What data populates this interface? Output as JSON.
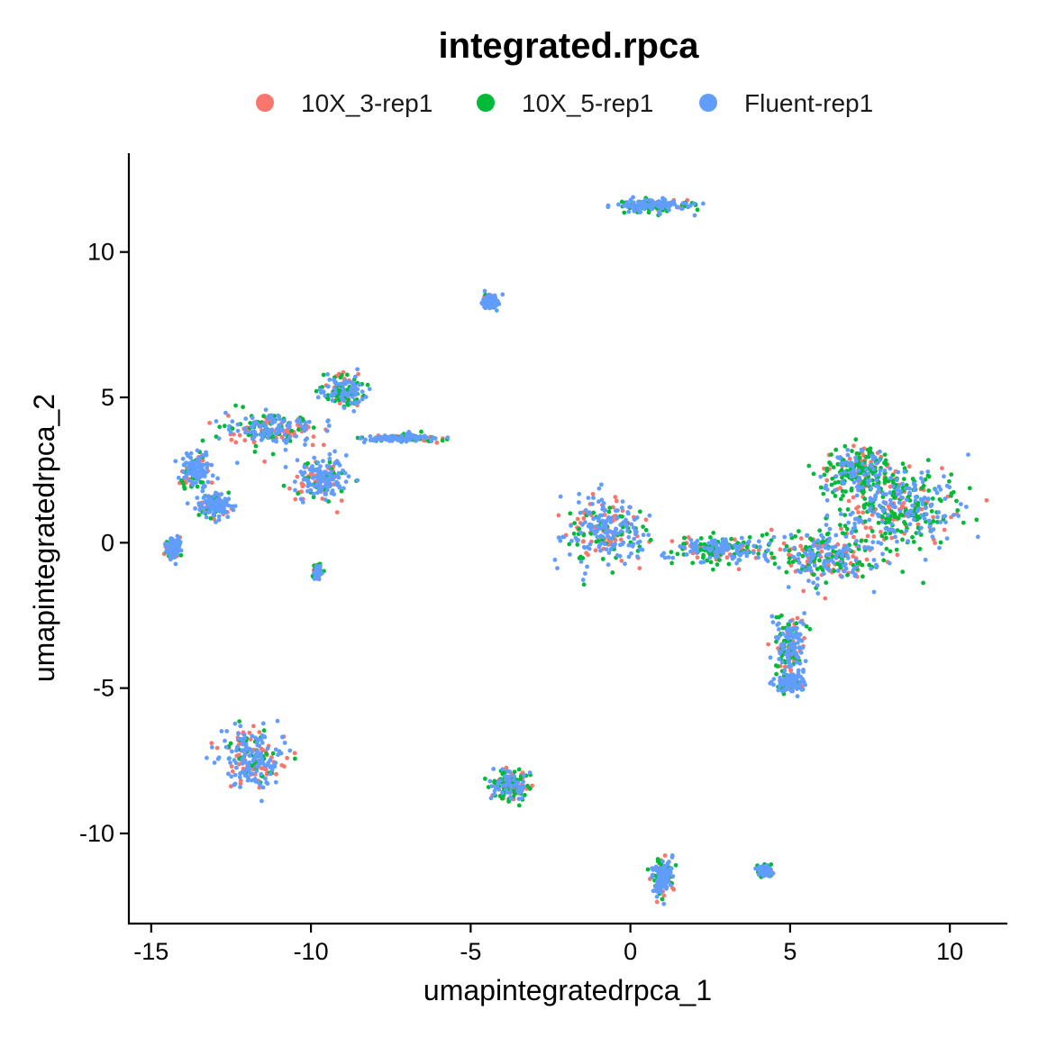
{
  "chart_data": {
    "type": "scatter",
    "title": "integrated.rpca",
    "xlabel": "umapintegratedrpca_1",
    "ylabel": "umapintegratedrpca_2",
    "xlim": [
      -15.7,
      11.8
    ],
    "ylim": [
      -13.1,
      13.4
    ],
    "xticks": [
      -15,
      -10,
      -5,
      0,
      5,
      10
    ],
    "xtick_labels": [
      "-15",
      "-10",
      "-5",
      "0",
      "5",
      "10"
    ],
    "yticks": [
      -10,
      -5,
      0,
      5,
      10
    ],
    "ytick_labels": [
      "-10",
      "-5",
      "0",
      "5",
      "10"
    ],
    "grid": false,
    "legend_position": "top",
    "series": [
      {
        "name": "10X_3-rep1",
        "color": "#F8766D"
      },
      {
        "name": "10X_5-rep1",
        "color": "#00BA38"
      },
      {
        "name": "Fluent-rep1",
        "color": "#619CFF"
      }
    ],
    "clusters": [
      {
        "center": [
          -11.2,
          3.9
        ],
        "spread": [
          1.3,
          0.5
        ],
        "weights": [
          0.3,
          0.25,
          0.45
        ]
      },
      {
        "center": [
          -9.0,
          5.2
        ],
        "spread": [
          0.6,
          0.5
        ],
        "weights": [
          0.25,
          0.35,
          0.4
        ]
      },
      {
        "center": [
          -9.7,
          2.2
        ],
        "spread": [
          0.7,
          0.7
        ],
        "weights": [
          0.25,
          0.2,
          0.55
        ]
      },
      {
        "center": [
          -13.6,
          2.5
        ],
        "spread": [
          0.4,
          0.5
        ],
        "weights": [
          0.2,
          0.2,
          0.6
        ]
      },
      {
        "center": [
          -13.0,
          1.3
        ],
        "spread": [
          0.5,
          0.4
        ],
        "weights": [
          0.2,
          0.2,
          0.6
        ]
      },
      {
        "center": [
          -14.3,
          -0.2
        ],
        "spread": [
          0.2,
          0.3
        ],
        "weights": [
          0.3,
          0.2,
          0.5
        ]
      },
      {
        "center": [
          -7.2,
          3.6
        ],
        "spread": [
          1.0,
          0.1
        ],
        "weights": [
          0.2,
          0.3,
          0.5
        ]
      },
      {
        "center": [
          -9.8,
          -1.0
        ],
        "spread": [
          0.1,
          0.2
        ],
        "weights": [
          0.2,
          0.4,
          0.4
        ]
      },
      {
        "center": [
          -11.8,
          -7.4
        ],
        "spread": [
          0.9,
          0.9
        ],
        "weights": [
          0.25,
          0.2,
          0.55
        ]
      },
      {
        "center": [
          -3.8,
          -8.3
        ],
        "spread": [
          0.5,
          0.5
        ],
        "weights": [
          0.3,
          0.4,
          0.3
        ]
      },
      {
        "center": [
          -4.4,
          8.3
        ],
        "spread": [
          0.2,
          0.2
        ],
        "weights": [
          0.1,
          0.1,
          0.8
        ]
      },
      {
        "center": [
          0.7,
          11.6
        ],
        "spread": [
          1.0,
          0.2
        ],
        "weights": [
          0.15,
          0.3,
          0.55
        ]
      },
      {
        "center": [
          1.0,
          -11.5
        ],
        "spread": [
          0.3,
          0.6
        ],
        "weights": [
          0.2,
          0.3,
          0.5
        ]
      },
      {
        "center": [
          4.2,
          -11.3
        ],
        "spread": [
          0.2,
          0.15
        ],
        "weights": [
          0.2,
          0.2,
          0.6
        ]
      },
      {
        "center": [
          -0.8,
          0.4
        ],
        "spread": [
          1.1,
          1.0
        ],
        "weights": [
          0.2,
          0.2,
          0.6
        ]
      },
      {
        "center": [
          2.8,
          -0.2
        ],
        "spread": [
          1.6,
          0.4
        ],
        "weights": [
          0.2,
          0.35,
          0.45
        ]
      },
      {
        "center": [
          8.3,
          1.2
        ],
        "spread": [
          1.7,
          1.3
        ],
        "weights": [
          0.2,
          0.35,
          0.45
        ]
      },
      {
        "center": [
          7.2,
          2.5
        ],
        "spread": [
          1.0,
          0.8
        ],
        "weights": [
          0.15,
          0.55,
          0.3
        ]
      },
      {
        "center": [
          6.2,
          -0.5
        ],
        "spread": [
          1.3,
          0.8
        ],
        "weights": [
          0.25,
          0.4,
          0.35
        ]
      },
      {
        "center": [
          5.0,
          -3.5
        ],
        "spread": [
          0.4,
          0.9
        ],
        "weights": [
          0.25,
          0.3,
          0.45
        ]
      },
      {
        "center": [
          5.0,
          -4.8
        ],
        "spread": [
          0.4,
          0.3
        ],
        "weights": [
          0.1,
          0.3,
          0.6
        ]
      }
    ]
  }
}
